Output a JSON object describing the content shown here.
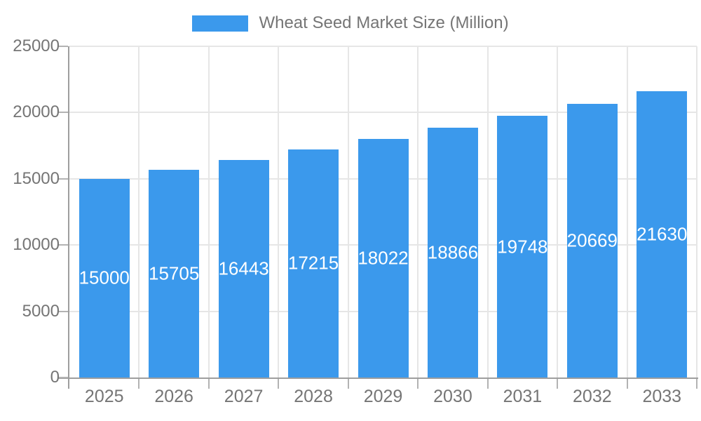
{
  "legend": {
    "swatch_color": "#3b99ec",
    "label": "Wheat Seed Market Size (Million)"
  },
  "colors": {
    "bar": "#3b99ec",
    "bar_label_text": "#ffffff",
    "axis_text": "#757575",
    "gridline": "#e6e6e6",
    "axis_line": "#9e9e9e",
    "tick_mark": "#b3b3b3",
    "background": "#ffffff"
  },
  "chart_data": {
    "type": "bar",
    "title": "Wheat Seed Market Size (Million)",
    "series": [
      {
        "name": "Wheat Seed Market Size (Million)",
        "values": [
          15000,
          15705,
          16443,
          17215,
          18022,
          18866,
          19748,
          20669,
          21630
        ]
      }
    ],
    "categories": [
      "2025",
      "2026",
      "2027",
      "2028",
      "2029",
      "2030",
      "2031",
      "2032",
      "2033"
    ],
    "data_labels": [
      "15000",
      "15705",
      "16443",
      "17215",
      "18022",
      "18866",
      "19748",
      "20669",
      "21630"
    ],
    "data_label_position": "inside-center",
    "xlabel": "",
    "ylabel": "",
    "ylim": [
      0,
      25000
    ],
    "y_ticks": [
      0,
      5000,
      10000,
      15000,
      20000,
      25000
    ],
    "y_tick_labels": [
      "0",
      "5000",
      "10000",
      "15000",
      "20000",
      "25000"
    ],
    "grid": true,
    "legend_position": "top-center"
  }
}
